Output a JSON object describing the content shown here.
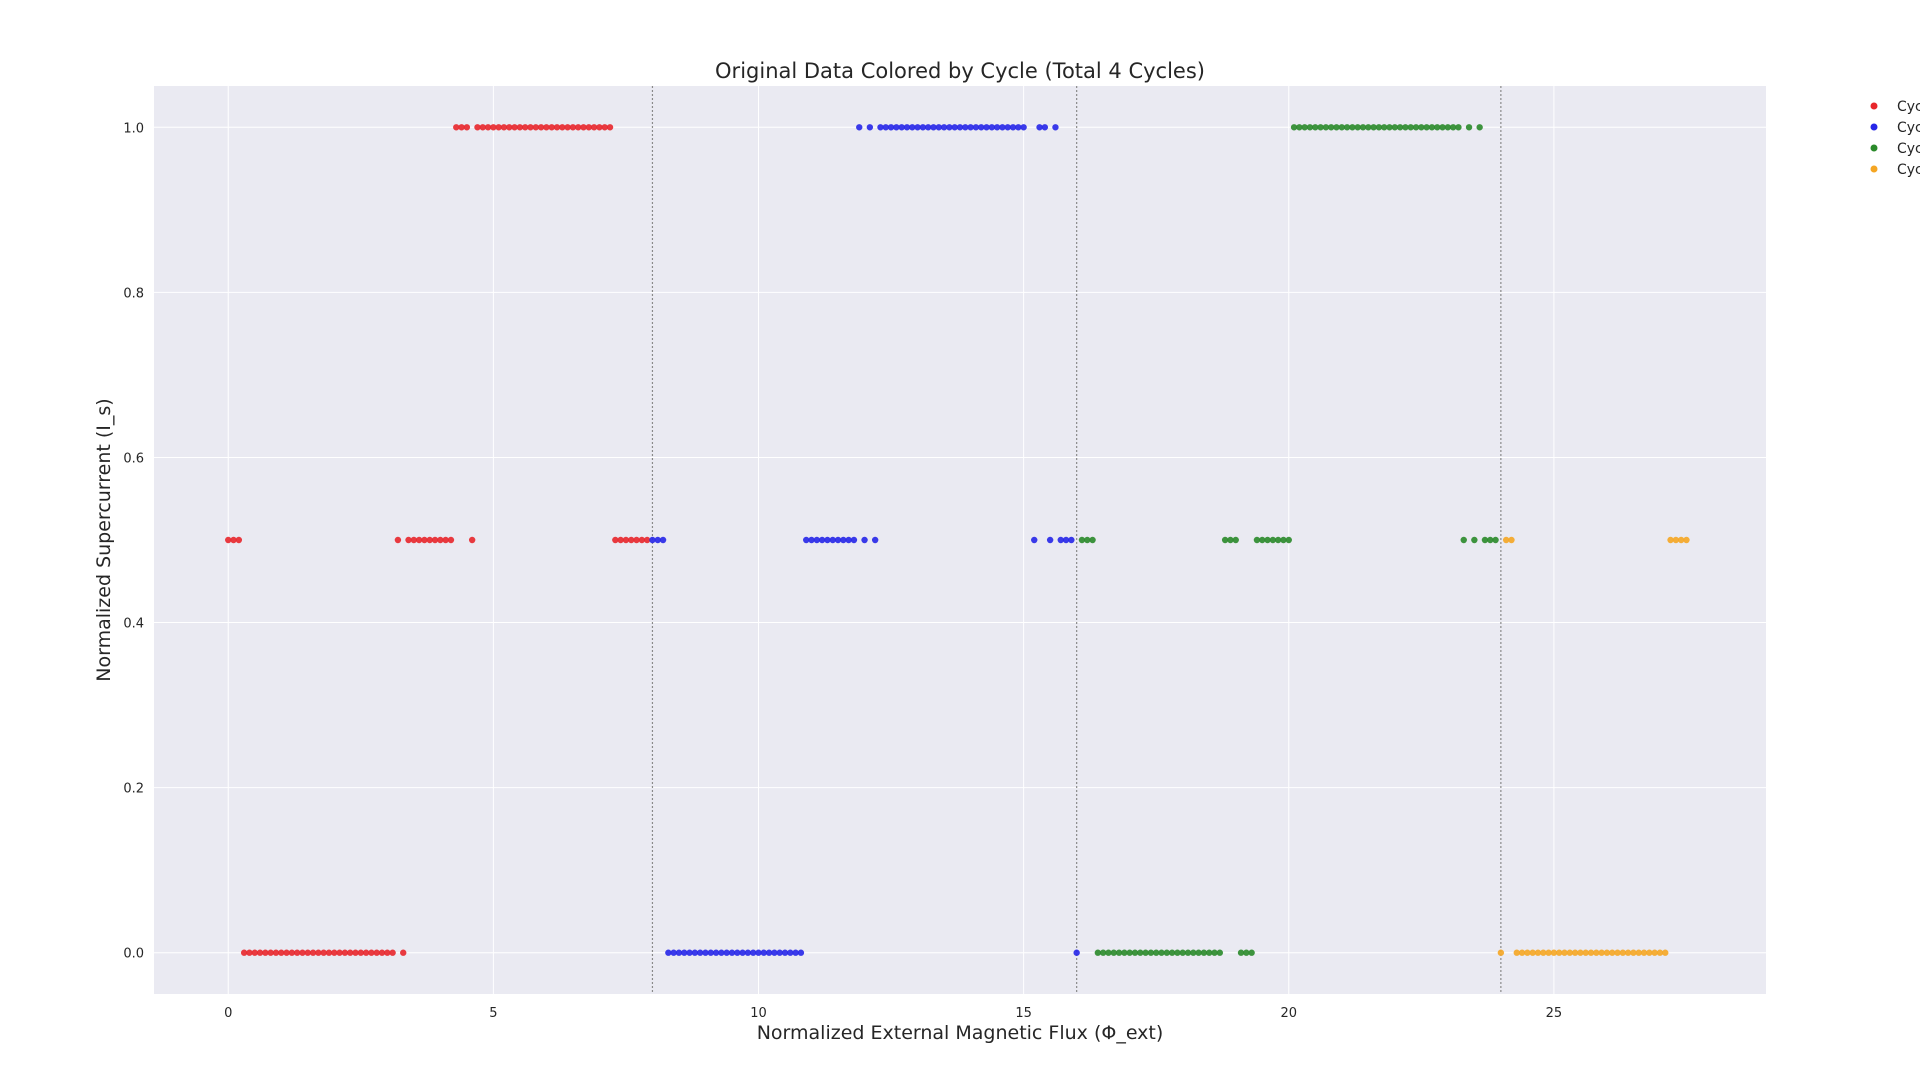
{
  "chart_data": {
    "type": "scatter",
    "title": "Original Data Colored by Cycle (Total 4 Cycles)",
    "xlabel": "Normalized External Magnetic Flux (Φ_ext)",
    "ylabel": "Normalized Supercurrent (I_s)",
    "xlim": [
      -1.4,
      29
    ],
    "ylim": [
      -0.05,
      1.05
    ],
    "xticks": [
      0,
      5,
      10,
      15,
      20,
      25
    ],
    "xtick_labels": [
      "0",
      "5",
      "10",
      "15",
      "20",
      "25"
    ],
    "yticks": [
      0.0,
      0.2,
      0.4,
      0.6,
      0.8,
      1.0
    ],
    "ytick_labels": [
      "0.0",
      "0.2",
      "0.4",
      "0.6",
      "0.8",
      "1.0"
    ],
    "grid": true,
    "legend_position": "outside-top-right",
    "cycle_boundaries": [
      8,
      16,
      24
    ],
    "series": [
      {
        "name": "Cyc",
        "color": "#e8262b",
        "points": [
          [
            0.0,
            0.5
          ],
          [
            0.1,
            0.5
          ],
          [
            0.2,
            0.5
          ],
          [
            0.3,
            0.0
          ],
          [
            0.4,
            0.0
          ],
          [
            0.5,
            0.0
          ],
          [
            0.6,
            0.0
          ],
          [
            0.7,
            0.0
          ],
          [
            0.8,
            0.0
          ],
          [
            0.9,
            0.0
          ],
          [
            1.0,
            0.0
          ],
          [
            1.1,
            0.0
          ],
          [
            1.2,
            0.0
          ],
          [
            1.3,
            0.0
          ],
          [
            1.4,
            0.0
          ],
          [
            1.5,
            0.0
          ],
          [
            1.6,
            0.0
          ],
          [
            1.7,
            0.0
          ],
          [
            1.8,
            0.0
          ],
          [
            1.9,
            0.0
          ],
          [
            2.0,
            0.0
          ],
          [
            2.1,
            0.0
          ],
          [
            2.2,
            0.0
          ],
          [
            2.3,
            0.0
          ],
          [
            2.4,
            0.0
          ],
          [
            2.5,
            0.0
          ],
          [
            2.6,
            0.0
          ],
          [
            2.7,
            0.0
          ],
          [
            2.8,
            0.0
          ],
          [
            2.9,
            0.0
          ],
          [
            3.0,
            0.0
          ],
          [
            3.1,
            0.0
          ],
          [
            3.3,
            0.0
          ],
          [
            3.2,
            0.5
          ],
          [
            3.4,
            0.5
          ],
          [
            3.5,
            0.5
          ],
          [
            3.6,
            0.5
          ],
          [
            3.7,
            0.5
          ],
          [
            3.8,
            0.5
          ],
          [
            3.9,
            0.5
          ],
          [
            4.0,
            0.5
          ],
          [
            4.1,
            0.5
          ],
          [
            4.2,
            0.5
          ],
          [
            4.6,
            0.5
          ],
          [
            4.3,
            1.0
          ],
          [
            4.4,
            1.0
          ],
          [
            4.5,
            1.0
          ],
          [
            4.7,
            1.0
          ],
          [
            4.8,
            1.0
          ],
          [
            4.9,
            1.0
          ],
          [
            5.0,
            1.0
          ],
          [
            5.1,
            1.0
          ],
          [
            5.2,
            1.0
          ],
          [
            5.3,
            1.0
          ],
          [
            5.4,
            1.0
          ],
          [
            5.5,
            1.0
          ],
          [
            5.6,
            1.0
          ],
          [
            5.7,
            1.0
          ],
          [
            5.8,
            1.0
          ],
          [
            5.9,
            1.0
          ],
          [
            6.0,
            1.0
          ],
          [
            6.1,
            1.0
          ],
          [
            6.2,
            1.0
          ],
          [
            6.3,
            1.0
          ],
          [
            6.4,
            1.0
          ],
          [
            6.5,
            1.0
          ],
          [
            6.6,
            1.0
          ],
          [
            6.7,
            1.0
          ],
          [
            6.8,
            1.0
          ],
          [
            6.9,
            1.0
          ],
          [
            7.0,
            1.0
          ],
          [
            7.1,
            1.0
          ],
          [
            7.2,
            1.0
          ],
          [
            7.3,
            0.5
          ],
          [
            7.4,
            0.5
          ],
          [
            7.5,
            0.5
          ],
          [
            7.6,
            0.5
          ],
          [
            7.7,
            0.5
          ],
          [
            7.8,
            0.5
          ],
          [
            7.9,
            0.5
          ]
        ]
      },
      {
        "name": "Cyc",
        "color": "#2626e8",
        "points": [
          [
            8.0,
            0.5
          ],
          [
            8.1,
            0.5
          ],
          [
            8.2,
            0.5
          ],
          [
            8.3,
            0.0
          ],
          [
            8.4,
            0.0
          ],
          [
            8.5,
            0.0
          ],
          [
            8.6,
            0.0
          ],
          [
            8.7,
            0.0
          ],
          [
            8.8,
            0.0
          ],
          [
            8.9,
            0.0
          ],
          [
            9.0,
            0.0
          ],
          [
            9.1,
            0.0
          ],
          [
            9.2,
            0.0
          ],
          [
            9.3,
            0.0
          ],
          [
            9.4,
            0.0
          ],
          [
            9.5,
            0.0
          ],
          [
            9.6,
            0.0
          ],
          [
            9.7,
            0.0
          ],
          [
            9.8,
            0.0
          ],
          [
            9.9,
            0.0
          ],
          [
            10.0,
            0.0
          ],
          [
            10.1,
            0.0
          ],
          [
            10.2,
            0.0
          ],
          [
            10.3,
            0.0
          ],
          [
            10.4,
            0.0
          ],
          [
            10.5,
            0.0
          ],
          [
            10.6,
            0.0
          ],
          [
            10.7,
            0.0
          ],
          [
            10.8,
            0.0
          ],
          [
            10.9,
            0.5
          ],
          [
            11.0,
            0.5
          ],
          [
            11.1,
            0.5
          ],
          [
            11.2,
            0.5
          ],
          [
            11.3,
            0.5
          ],
          [
            11.4,
            0.5
          ],
          [
            11.5,
            0.5
          ],
          [
            11.6,
            0.5
          ],
          [
            11.7,
            0.5
          ],
          [
            11.8,
            0.5
          ],
          [
            12.0,
            0.5
          ],
          [
            12.2,
            0.5
          ],
          [
            11.9,
            1.0
          ],
          [
            12.1,
            1.0
          ],
          [
            12.3,
            1.0
          ],
          [
            12.4,
            1.0
          ],
          [
            12.5,
            1.0
          ],
          [
            12.6,
            1.0
          ],
          [
            12.7,
            1.0
          ],
          [
            12.8,
            1.0
          ],
          [
            12.9,
            1.0
          ],
          [
            13.0,
            1.0
          ],
          [
            13.1,
            1.0
          ],
          [
            13.2,
            1.0
          ],
          [
            13.3,
            1.0
          ],
          [
            13.4,
            1.0
          ],
          [
            13.5,
            1.0
          ],
          [
            13.6,
            1.0
          ],
          [
            13.7,
            1.0
          ],
          [
            13.8,
            1.0
          ],
          [
            13.9,
            1.0
          ],
          [
            14.0,
            1.0
          ],
          [
            14.1,
            1.0
          ],
          [
            14.2,
            1.0
          ],
          [
            14.3,
            1.0
          ],
          [
            14.4,
            1.0
          ],
          [
            14.5,
            1.0
          ],
          [
            14.6,
            1.0
          ],
          [
            14.7,
            1.0
          ],
          [
            14.8,
            1.0
          ],
          [
            14.9,
            1.0
          ],
          [
            15.0,
            1.0
          ],
          [
            15.3,
            1.0
          ],
          [
            15.4,
            1.0
          ],
          [
            15.6,
            1.0
          ],
          [
            15.2,
            0.5
          ],
          [
            15.5,
            0.5
          ],
          [
            15.7,
            0.5
          ],
          [
            15.8,
            0.5
          ],
          [
            15.9,
            0.5
          ],
          [
            16.0,
            0.0
          ]
        ]
      },
      {
        "name": "Cyc",
        "color": "#2a8a2a",
        "points": [
          [
            16.1,
            0.5
          ],
          [
            16.2,
            0.5
          ],
          [
            16.3,
            0.5
          ],
          [
            16.4,
            0.0
          ],
          [
            16.5,
            0.0
          ],
          [
            16.6,
            0.0
          ],
          [
            16.7,
            0.0
          ],
          [
            16.8,
            0.0
          ],
          [
            16.9,
            0.0
          ],
          [
            17.0,
            0.0
          ],
          [
            17.1,
            0.0
          ],
          [
            17.2,
            0.0
          ],
          [
            17.3,
            0.0
          ],
          [
            17.4,
            0.0
          ],
          [
            17.5,
            0.0
          ],
          [
            17.6,
            0.0
          ],
          [
            17.7,
            0.0
          ],
          [
            17.8,
            0.0
          ],
          [
            17.9,
            0.0
          ],
          [
            18.0,
            0.0
          ],
          [
            18.1,
            0.0
          ],
          [
            18.2,
            0.0
          ],
          [
            18.3,
            0.0
          ],
          [
            18.4,
            0.0
          ],
          [
            18.5,
            0.0
          ],
          [
            18.6,
            0.0
          ],
          [
            18.7,
            0.0
          ],
          [
            19.1,
            0.0
          ],
          [
            19.2,
            0.0
          ],
          [
            19.3,
            0.0
          ],
          [
            18.8,
            0.5
          ],
          [
            18.9,
            0.5
          ],
          [
            19.0,
            0.5
          ],
          [
            19.4,
            0.5
          ],
          [
            19.5,
            0.5
          ],
          [
            19.6,
            0.5
          ],
          [
            19.7,
            0.5
          ],
          [
            19.8,
            0.5
          ],
          [
            19.9,
            0.5
          ],
          [
            20.0,
            0.5
          ],
          [
            20.1,
            1.0
          ],
          [
            20.2,
            1.0
          ],
          [
            20.3,
            1.0
          ],
          [
            20.4,
            1.0
          ],
          [
            20.5,
            1.0
          ],
          [
            20.6,
            1.0
          ],
          [
            20.7,
            1.0
          ],
          [
            20.8,
            1.0
          ],
          [
            20.9,
            1.0
          ],
          [
            21.0,
            1.0
          ],
          [
            21.1,
            1.0
          ],
          [
            21.2,
            1.0
          ],
          [
            21.3,
            1.0
          ],
          [
            21.4,
            1.0
          ],
          [
            21.5,
            1.0
          ],
          [
            21.6,
            1.0
          ],
          [
            21.7,
            1.0
          ],
          [
            21.8,
            1.0
          ],
          [
            21.9,
            1.0
          ],
          [
            22.0,
            1.0
          ],
          [
            22.1,
            1.0
          ],
          [
            22.2,
            1.0
          ],
          [
            22.3,
            1.0
          ],
          [
            22.4,
            1.0
          ],
          [
            22.5,
            1.0
          ],
          [
            22.6,
            1.0
          ],
          [
            22.7,
            1.0
          ],
          [
            22.8,
            1.0
          ],
          [
            22.9,
            1.0
          ],
          [
            23.0,
            1.0
          ],
          [
            23.1,
            1.0
          ],
          [
            23.2,
            1.0
          ],
          [
            23.4,
            1.0
          ],
          [
            23.6,
            1.0
          ],
          [
            23.3,
            0.5
          ],
          [
            23.5,
            0.5
          ],
          [
            23.7,
            0.5
          ],
          [
            23.8,
            0.5
          ],
          [
            23.9,
            0.5
          ]
        ]
      },
      {
        "name": "Cyc",
        "color": "#f5a623",
        "points": [
          [
            24.0,
            0.0
          ],
          [
            24.3,
            0.0
          ],
          [
            24.4,
            0.0
          ],
          [
            24.5,
            0.0
          ],
          [
            24.6,
            0.0
          ],
          [
            24.7,
            0.0
          ],
          [
            24.8,
            0.0
          ],
          [
            24.9,
            0.0
          ],
          [
            25.0,
            0.0
          ],
          [
            25.1,
            0.0
          ],
          [
            25.2,
            0.0
          ],
          [
            25.3,
            0.0
          ],
          [
            25.4,
            0.0
          ],
          [
            25.5,
            0.0
          ],
          [
            25.6,
            0.0
          ],
          [
            25.7,
            0.0
          ],
          [
            25.8,
            0.0
          ],
          [
            25.9,
            0.0
          ],
          [
            26.0,
            0.0
          ],
          [
            26.1,
            0.0
          ],
          [
            26.2,
            0.0
          ],
          [
            26.3,
            0.0
          ],
          [
            26.4,
            0.0
          ],
          [
            26.5,
            0.0
          ],
          [
            26.6,
            0.0
          ],
          [
            26.7,
            0.0
          ],
          [
            26.8,
            0.0
          ],
          [
            26.9,
            0.0
          ],
          [
            27.0,
            0.0
          ],
          [
            27.1,
            0.0
          ],
          [
            24.1,
            0.5
          ],
          [
            24.2,
            0.5
          ],
          [
            27.2,
            0.5
          ],
          [
            27.3,
            0.5
          ],
          [
            27.4,
            0.5
          ],
          [
            27.5,
            0.5
          ]
        ]
      }
    ]
  }
}
